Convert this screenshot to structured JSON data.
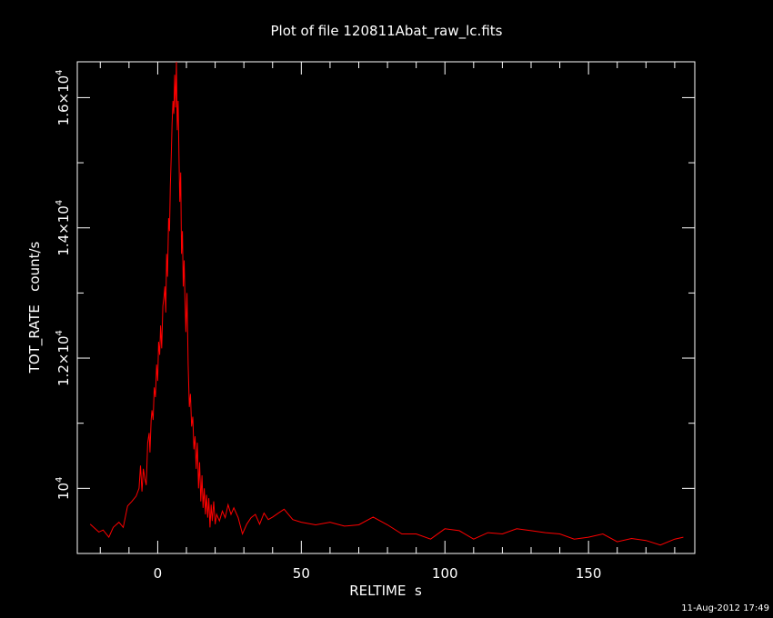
{
  "chart_data": {
    "type": "line",
    "title": "Plot of file 120811Abat_raw_lc.fits",
    "xlabel": "RELTIME  s",
    "ylabel": "TOT_RATE   count/s",
    "timestamp": "11-Aug-2012 17:49",
    "xlim": [
      -28,
      187
    ],
    "ylim": [
      9000,
      16550
    ],
    "grid": false,
    "x_ticks": [
      {
        "value": 0,
        "label": "0"
      },
      {
        "value": 50,
        "label": "50"
      },
      {
        "value": 100,
        "label": "100"
      },
      {
        "value": 150,
        "label": "150"
      }
    ],
    "y_ticks": [
      {
        "value": 10000,
        "mant": "10",
        "exp": "4"
      },
      {
        "value": 12000,
        "mant": "1.2×10",
        "exp": "4"
      },
      {
        "value": 14000,
        "mant": "1.4×10",
        "exp": "4"
      },
      {
        "value": 16000,
        "mant": "1.6×10",
        "exp": "4"
      }
    ],
    "series": [
      {
        "color": "#ff0000",
        "points": [
          [
            -23.5,
            9450
          ],
          [
            -20.5,
            9330
          ],
          [
            -19,
            9360
          ],
          [
            -17,
            9250
          ],
          [
            -15.5,
            9400
          ],
          [
            -13.5,
            9480
          ],
          [
            -12,
            9400
          ],
          [
            -10.5,
            9730
          ],
          [
            -9,
            9800
          ],
          [
            -7.5,
            9880
          ],
          [
            -6.5,
            10000
          ],
          [
            -6,
            10350
          ],
          [
            -5.5,
            9950
          ],
          [
            -5,
            10300
          ],
          [
            -4.5,
            10150
          ],
          [
            -4,
            10050
          ],
          [
            -3.5,
            10700
          ],
          [
            -3,
            10850
          ],
          [
            -2.7,
            10550
          ],
          [
            -2.3,
            11050
          ],
          [
            -2,
            11200
          ],
          [
            -1.6,
            11050
          ],
          [
            -1.2,
            11550
          ],
          [
            -0.8,
            11400
          ],
          [
            -0.4,
            11900
          ],
          [
            0,
            11650
          ],
          [
            0.3,
            12250
          ],
          [
            0.7,
            12050
          ],
          [
            1,
            12500
          ],
          [
            1.4,
            12150
          ],
          [
            1.8,
            12800
          ],
          [
            2.2,
            12950
          ],
          [
            2.5,
            13100
          ],
          [
            2.8,
            12700
          ],
          [
            3.1,
            13600
          ],
          [
            3.4,
            13250
          ],
          [
            3.8,
            14150
          ],
          [
            4.1,
            13950
          ],
          [
            4.4,
            14650
          ],
          [
            4.7,
            15100
          ],
          [
            5,
            15600
          ],
          [
            5.3,
            15950
          ],
          [
            5.6,
            15750
          ],
          [
            5.9,
            16350
          ],
          [
            6.2,
            15850
          ],
          [
            6.5,
            16550
          ],
          [
            6.8,
            15500
          ],
          [
            7.1,
            15950
          ],
          [
            7.4,
            15100
          ],
          [
            7.7,
            14400
          ],
          [
            8,
            14850
          ],
          [
            8.3,
            13600
          ],
          [
            8.6,
            13950
          ],
          [
            8.9,
            13100
          ],
          [
            9.2,
            13500
          ],
          [
            9.5,
            12900
          ],
          [
            9.8,
            12400
          ],
          [
            10.2,
            13000
          ],
          [
            10.6,
            11900
          ],
          [
            11,
            11250
          ],
          [
            11.4,
            11450
          ],
          [
            11.8,
            10950
          ],
          [
            12.2,
            11100
          ],
          [
            12.6,
            10600
          ],
          [
            13,
            10800
          ],
          [
            13.4,
            10300
          ],
          [
            13.8,
            10700
          ],
          [
            14.2,
            10000
          ],
          [
            14.6,
            10400
          ],
          [
            15,
            9800
          ],
          [
            15.4,
            10200
          ],
          [
            15.8,
            9700
          ],
          [
            16.2,
            10000
          ],
          [
            16.6,
            9600
          ],
          [
            17,
            9900
          ],
          [
            17.4,
            9550
          ],
          [
            17.8,
            9850
          ],
          [
            18.2,
            9400
          ],
          [
            18.6,
            9750
          ],
          [
            19,
            9500
          ],
          [
            19.5,
            9800
          ],
          [
            20,
            9450
          ],
          [
            20.5,
            9600
          ],
          [
            21.5,
            9500
          ],
          [
            22.5,
            9650
          ],
          [
            23.5,
            9550
          ],
          [
            24.5,
            9750
          ],
          [
            25.5,
            9600
          ],
          [
            26.5,
            9700
          ],
          [
            28,
            9550
          ],
          [
            29.5,
            9300
          ],
          [
            31,
            9450
          ],
          [
            32.5,
            9550
          ],
          [
            34,
            9600
          ],
          [
            35.5,
            9450
          ],
          [
            37,
            9620
          ],
          [
            38.5,
            9520
          ],
          [
            40,
            9560
          ],
          [
            42,
            9620
          ],
          [
            44,
            9680
          ],
          [
            47,
            9520
          ],
          [
            50,
            9480
          ],
          [
            55,
            9440
          ],
          [
            60,
            9480
          ],
          [
            65,
            9420
          ],
          [
            70,
            9440
          ],
          [
            75,
            9560
          ],
          [
            80,
            9440
          ],
          [
            85,
            9300
          ],
          [
            90,
            9300
          ],
          [
            95,
            9220
          ],
          [
            100,
            9380
          ],
          [
            105,
            9350
          ],
          [
            110,
            9220
          ],
          [
            115,
            9320
          ],
          [
            120,
            9300
          ],
          [
            125,
            9380
          ],
          [
            130,
            9350
          ],
          [
            135,
            9320
          ],
          [
            140,
            9300
          ],
          [
            145,
            9220
          ],
          [
            150,
            9250
          ],
          [
            155,
            9300
          ],
          [
            160,
            9180
          ],
          [
            165,
            9230
          ],
          [
            170,
            9200
          ],
          [
            175,
            9130
          ],
          [
            180,
            9220
          ],
          [
            183,
            9250
          ]
        ]
      }
    ]
  }
}
